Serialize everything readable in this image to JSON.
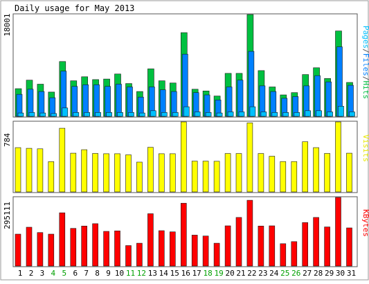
{
  "chart_data": {
    "type": "bar",
    "title": "Daily usage for May 2013",
    "categories": [
      "1",
      "2",
      "3",
      "4",
      "5",
      "6",
      "7",
      "8",
      "9",
      "10",
      "11",
      "12",
      "13",
      "14",
      "15",
      "16",
      "17",
      "18",
      "19",
      "20",
      "21",
      "22",
      "23",
      "24",
      "25",
      "26",
      "27",
      "28",
      "29",
      "30",
      "31"
    ],
    "weekend_days": [
      "4",
      "5",
      "11",
      "12",
      "18",
      "19",
      "25",
      "26"
    ],
    "panels": [
      {
        "key": "hits_panel",
        "max_label": "18001",
        "ylim": [
          0,
          18001
        ],
        "legend_parts": [
          {
            "text": "Pages",
            "color": "#00c0ff"
          },
          {
            "text": "/",
            "color": "#555555"
          },
          {
            "text": "Files",
            "color": "#0080ff"
          },
          {
            "text": "/",
            "color": "#555555"
          },
          {
            "text": "Hits",
            "color": "#00c040"
          }
        ],
        "series": [
          {
            "name": "Hits",
            "color": "#00c040",
            "values": [
              4900,
              6400,
              5700,
              4300,
              9700,
              6300,
              7000,
              6500,
              6600,
              7500,
              5800,
              4400,
              8400,
              6300,
              5900,
              14800,
              4800,
              4500,
              3600,
              7600,
              7600,
              18000,
              8100,
              5200,
              3800,
              4200,
              7400,
              8600,
              6700,
              15100,
              6000
            ]
          },
          {
            "name": "Files",
            "color": "#0080ff",
            "values": [
              3900,
              4800,
              4400,
              3300,
              8000,
              5300,
              5600,
              5600,
              5300,
              5700,
              5200,
              3400,
              5200,
              4700,
              4400,
              11000,
              4200,
              3800,
              2900,
              5200,
              6400,
              11500,
              5400,
              4400,
              3200,
              3500,
              5400,
              7200,
              6100,
              12300,
              5500
            ]
          },
          {
            "name": "Pages",
            "color": "#00c0ff",
            "values": [
              600,
              700,
              600,
              500,
              1500,
              700,
              700,
              700,
              700,
              700,
              700,
              600,
              1000,
              700,
              700,
              1700,
              800,
              700,
              600,
              800,
              800,
              1700,
              800,
              700,
              700,
              700,
              1000,
              1000,
              800,
              1800,
              800
            ]
          }
        ]
      },
      {
        "key": "visits_panel",
        "max_label": "784",
        "ylim": [
          0,
          784
        ],
        "legend_parts": [
          {
            "text": "Visits",
            "color": "#e8e800"
          }
        ],
        "series": [
          {
            "name": "Visits",
            "color": "#ffff00",
            "values": [
              496,
              488,
              483,
              339,
              713,
              434,
              473,
              431,
              428,
              428,
              415,
              334,
              500,
              428,
              428,
              784,
              345,
              345,
              343,
              430,
              430,
              773,
              430,
              400,
              340,
              340,
              562,
              496,
              431,
              784,
              434
            ]
          }
        ]
      },
      {
        "key": "kbytes_panel",
        "max_label": "295111",
        "ylim": [
          0,
          295111
        ],
        "legend_parts": [
          {
            "text": "KBytes",
            "color": "#ff0000"
          }
        ],
        "series": [
          {
            "name": "KBytes",
            "color": "#ff0000",
            "values": [
              137000,
              167000,
              144000,
              137000,
              229000,
              162000,
              172000,
              182000,
              149000,
              151000,
              88000,
              98000,
              225000,
              152000,
              147000,
              270000,
              133000,
              129000,
              98000,
              173000,
              209000,
              283000,
              172000,
              173000,
              96000,
              105000,
              187000,
              209000,
              168000,
              295111,
              164000
            ]
          }
        ]
      }
    ]
  }
}
